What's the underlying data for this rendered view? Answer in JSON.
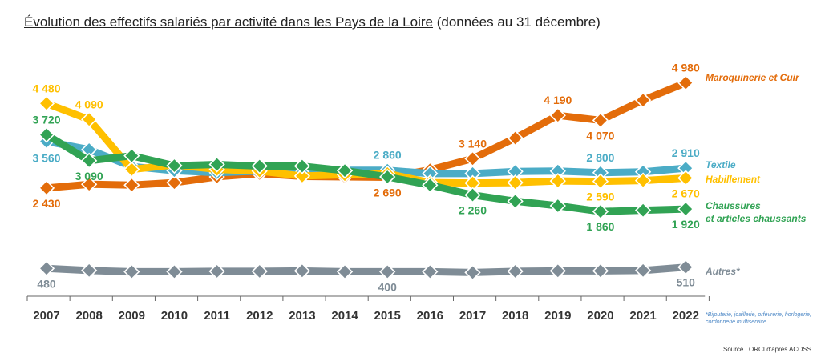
{
  "title": {
    "main": "Évolution des effectifs salariés par activité dans les Pays de la Loire",
    "sub": "(données au 31 décembre)"
  },
  "footnote": "*Bijouterie, joaillerie, orfèvrerie, horlogerie, cordonnerie multiservice",
  "source": "Source : ORCI d'après ACOSS",
  "chart_data": {
    "type": "line",
    "x": [
      2007,
      2008,
      2009,
      2010,
      2011,
      2012,
      2013,
      2014,
      2015,
      2016,
      2017,
      2018,
      2019,
      2020,
      2021,
      2022
    ],
    "xlabels": [
      "2007",
      "2008",
      "2009",
      "2010",
      "2011",
      "2012",
      "2013",
      "2014",
      "2015",
      "2016",
      "2017",
      "2018",
      "2019",
      "2020",
      "2021",
      "2022"
    ],
    "ylim": [
      0,
      5200
    ],
    "grid": false,
    "legend": "right, labels at line ends",
    "marker": "diamond",
    "series": [
      {
        "name": "Maroquinerie et Cuir",
        "color": "#e36c0a",
        "values": [
          2430,
          2520,
          2500,
          2560,
          2700,
          2780,
          2710,
          2700,
          2690,
          2870,
          3140,
          3640,
          4190,
          4070,
          4560,
          4980
        ],
        "labels": [
          {
            "i": 0,
            "text": "2 430",
            "pos": "below"
          },
          {
            "i": 8,
            "text": "2 690",
            "pos": "below"
          },
          {
            "i": 10,
            "text": "3 140",
            "pos": "above"
          },
          {
            "i": 12,
            "text": "4 190",
            "pos": "above"
          },
          {
            "i": 13,
            "text": "4 070",
            "pos": "below"
          },
          {
            "i": 15,
            "text": "4 980",
            "pos": "above"
          }
        ]
      },
      {
        "name": "Textile",
        "color": "#4bacc6",
        "values": [
          3560,
          3360,
          2950,
          2850,
          2800,
          2840,
          2800,
          2860,
          2860,
          2780,
          2780,
          2830,
          2840,
          2800,
          2820,
          2910
        ],
        "labels": [
          {
            "i": 0,
            "text": "3 560",
            "pos": "left-below"
          },
          {
            "i": 8,
            "text": "2 860",
            "pos": "above"
          },
          {
            "i": 13,
            "text": "2 800",
            "pos": "above"
          },
          {
            "i": 15,
            "text": "2 910",
            "pos": "above"
          }
        ]
      },
      {
        "name": "Habillement",
        "color": "#ffc000",
        "values": [
          4480,
          4090,
          2880,
          2990,
          2880,
          2840,
          2720,
          2750,
          2780,
          2560,
          2550,
          2560,
          2600,
          2590,
          2610,
          2670
        ],
        "labels": [
          {
            "i": 0,
            "text": "4 480",
            "pos": "above"
          },
          {
            "i": 1,
            "text": "4 090",
            "pos": "above"
          },
          {
            "i": 13,
            "text": "2 590",
            "pos": "below"
          },
          {
            "i": 15,
            "text": "2 670",
            "pos": "below"
          }
        ]
      },
      {
        "name": "Chaussures et articles chaussants",
        "name_lines": [
          "Chaussures",
          "et articles chaussants"
        ],
        "color": "#31a354",
        "values": [
          3720,
          3090,
          3210,
          2970,
          3000,
          2960,
          2960,
          2850,
          2700,
          2500,
          2260,
          2110,
          2000,
          1860,
          1890,
          1920
        ],
        "labels": [
          {
            "i": 0,
            "text": "3 720",
            "pos": "above"
          },
          {
            "i": 1,
            "text": "3 090",
            "pos": "below"
          },
          {
            "i": 10,
            "text": "2 260",
            "pos": "below"
          },
          {
            "i": 13,
            "text": "1 860",
            "pos": "below"
          },
          {
            "i": 15,
            "text": "1 920",
            "pos": "below"
          }
        ]
      },
      {
        "name": "Autres*",
        "color": "#7f8c96",
        "values": [
          480,
          430,
          400,
          400,
          410,
          410,
          420,
          400,
          400,
          400,
          380,
          410,
          420,
          420,
          430,
          510
        ],
        "labels": [
          {
            "i": 0,
            "text": "480",
            "pos": "below"
          },
          {
            "i": 8,
            "text": "400",
            "pos": "below"
          },
          {
            "i": 15,
            "text": "510",
            "pos": "below"
          }
        ]
      }
    ]
  }
}
